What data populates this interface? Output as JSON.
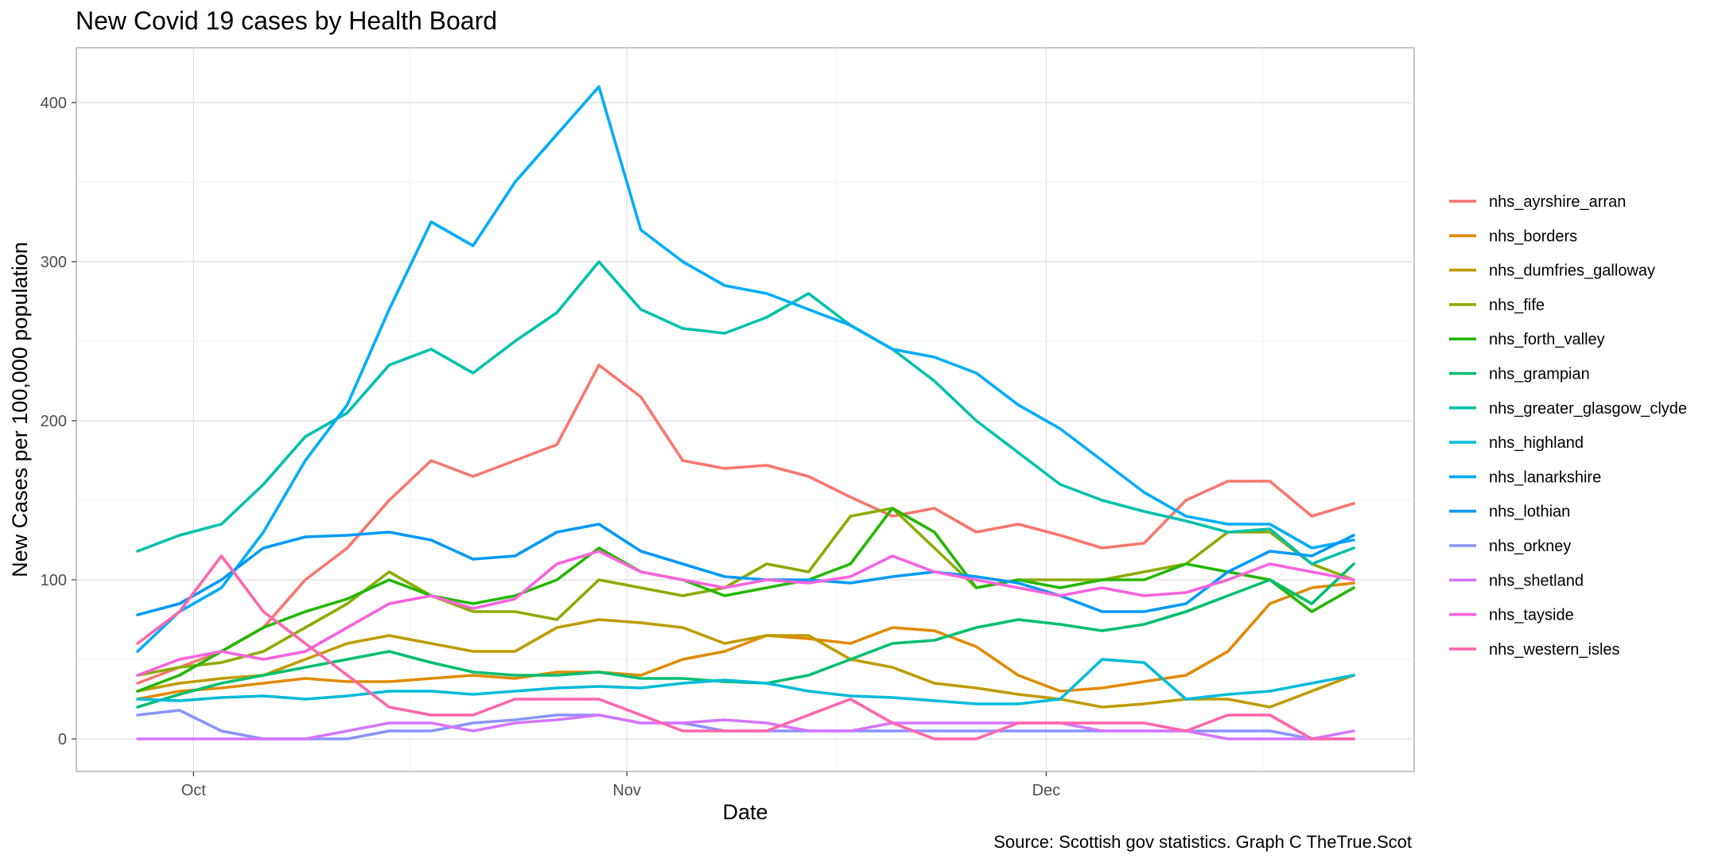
{
  "caption": {
    "source": "Source: Scottish gov statistics. Graph C TheTrue.Scot"
  },
  "chart_data": {
    "type": "line",
    "title": "New Covid 19 cases by Health Board",
    "xlabel": "Date",
    "ylabel": "New Cases per 100,000 population",
    "x": [
      "Sep 27",
      "Sep 30",
      "Oct 3",
      "Oct 6",
      "Oct 9",
      "Oct 12",
      "Oct 15",
      "Oct 18",
      "Oct 21",
      "Oct 24",
      "Oct 27",
      "Oct 30",
      "Nov 2",
      "Nov 5",
      "Nov 8",
      "Nov 11",
      "Nov 14",
      "Nov 17",
      "Nov 20",
      "Nov 23",
      "Nov 26",
      "Nov 29",
      "Dec 2",
      "Dec 5",
      "Dec 8",
      "Dec 11",
      "Dec 14",
      "Dec 17",
      "Dec 20",
      "Dec 23"
    ],
    "xticks": [
      "Oct",
      "Nov",
      "Dec"
    ],
    "yticks": [
      0,
      100,
      200,
      300,
      400
    ],
    "ylim": [
      -20,
      435
    ],
    "grid": true,
    "legend_position": "right",
    "series": [
      {
        "name": "nhs_ayrshire_arran",
        "color": "#F8766D",
        "values": [
          35,
          45,
          55,
          70,
          100,
          120,
          150,
          175,
          165,
          175,
          185,
          235,
          215,
          175,
          170,
          172,
          165,
          152,
          140,
          145,
          130,
          135,
          128,
          120,
          123,
          150,
          162,
          162,
          140,
          148
        ]
      },
      {
        "name": "nhs_borders",
        "color": "#E18A00",
        "values": [
          25,
          30,
          32,
          35,
          38,
          36,
          36,
          38,
          40,
          38,
          42,
          42,
          40,
          50,
          55,
          65,
          63,
          60,
          70,
          68,
          58,
          40,
          30,
          32,
          36,
          40,
          55,
          85,
          95,
          98
        ]
      },
      {
        "name": "nhs_dumfries_galloway",
        "color": "#BE9C00",
        "values": [
          30,
          35,
          38,
          40,
          50,
          60,
          65,
          60,
          55,
          55,
          70,
          75,
          73,
          70,
          60,
          65,
          65,
          50,
          45,
          35,
          32,
          28,
          25,
          20,
          22,
          25,
          25,
          20,
          30,
          40
        ]
      },
      {
        "name": "nhs_fife",
        "color": "#8CAB00",
        "values": [
          40,
          45,
          48,
          55,
          70,
          85,
          105,
          90,
          80,
          80,
          75,
          100,
          95,
          90,
          95,
          110,
          105,
          140,
          145,
          120,
          95,
          100,
          100,
          100,
          105,
          110,
          130,
          130,
          110,
          100
        ]
      },
      {
        "name": "nhs_forth_valley",
        "color": "#24B700",
        "values": [
          30,
          40,
          55,
          70,
          80,
          88,
          100,
          90,
          85,
          90,
          100,
          120,
          105,
          100,
          90,
          95,
          100,
          110,
          145,
          130,
          95,
          100,
          95,
          100,
          100,
          110,
          105,
          100,
          80,
          95
        ]
      },
      {
        "name": "nhs_grampian",
        "color": "#00BE70",
        "values": [
          20,
          28,
          35,
          40,
          45,
          50,
          55,
          48,
          42,
          40,
          40,
          42,
          38,
          38,
          36,
          35,
          40,
          50,
          60,
          62,
          70,
          75,
          72,
          68,
          72,
          80,
          90,
          100,
          85,
          110
        ]
      },
      {
        "name": "nhs_greater_glasgow_clyde",
        "color": "#00C1AB",
        "values": [
          118,
          128,
          135,
          160,
          190,
          205,
          235,
          245,
          230,
          250,
          268,
          300,
          270,
          258,
          255,
          265,
          280,
          260,
          245,
          225,
          200,
          180,
          160,
          150,
          143,
          137,
          130,
          132,
          110,
          120
        ]
      },
      {
        "name": "nhs_highland",
        "color": "#00BBDA",
        "values": [
          25,
          24,
          26,
          27,
          25,
          27,
          30,
          30,
          28,
          30,
          32,
          33,
          32,
          35,
          37,
          35,
          30,
          27,
          26,
          24,
          22,
          22,
          25,
          50,
          48,
          25,
          28,
          30,
          35,
          40
        ]
      },
      {
        "name": "nhs_lanarkshire",
        "color": "#00ACFC",
        "values": [
          55,
          80,
          95,
          130,
          175,
          210,
          270,
          325,
          310,
          350,
          380,
          410,
          320,
          300,
          285,
          280,
          270,
          260,
          245,
          240,
          230,
          210,
          195,
          175,
          155,
          140,
          135,
          135,
          120,
          125
        ]
      },
      {
        "name": "nhs_lothian",
        "color": "#0099F8",
        "values": [
          78,
          85,
          100,
          120,
          127,
          128,
          130,
          125,
          113,
          115,
          130,
          135,
          118,
          110,
          102,
          100,
          100,
          98,
          102,
          105,
          102,
          98,
          90,
          80,
          80,
          85,
          105,
          118,
          115,
          128
        ]
      },
      {
        "name": "nhs_orkney",
        "color": "#8B93FF",
        "values": [
          15,
          18,
          5,
          0,
          0,
          0,
          5,
          5,
          10,
          12,
          15,
          15,
          10,
          10,
          5,
          5,
          5,
          5,
          5,
          5,
          5,
          5,
          5,
          5,
          5,
          5,
          5,
          5,
          0,
          0
        ]
      },
      {
        "name": "nhs_shetland",
        "color": "#D575FE",
        "values": [
          0,
          0,
          0,
          0,
          0,
          5,
          10,
          10,
          5,
          10,
          12,
          15,
          10,
          10,
          12,
          10,
          5,
          5,
          10,
          10,
          10,
          10,
          10,
          5,
          5,
          5,
          0,
          0,
          0,
          5
        ]
      },
      {
        "name": "nhs_tayside",
        "color": "#F962DD",
        "values": [
          40,
          50,
          55,
          50,
          55,
          70,
          85,
          90,
          82,
          88,
          110,
          118,
          105,
          100,
          95,
          100,
          98,
          102,
          115,
          105,
          100,
          95,
          90,
          95,
          90,
          92,
          100,
          110,
          105,
          100
        ]
      },
      {
        "name": "nhs_western_isles",
        "color": "#FF65AC",
        "values": [
          60,
          80,
          115,
          80,
          60,
          40,
          20,
          15,
          15,
          25,
          25,
          25,
          15,
          5,
          5,
          5,
          15,
          25,
          10,
          0,
          0,
          10,
          10,
          10,
          10,
          5,
          15,
          15,
          0,
          0
        ]
      }
    ]
  }
}
